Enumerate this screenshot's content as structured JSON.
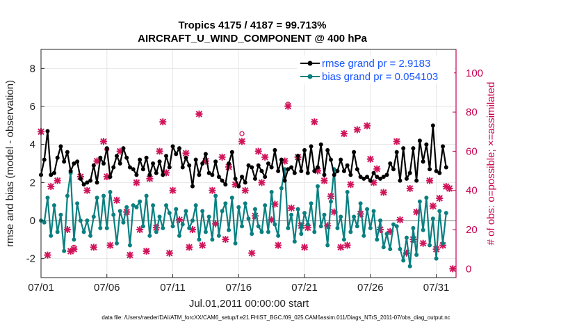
{
  "chart_data": {
    "type": "line",
    "title": "Tropics 4175 / 4187 = 99.713%",
    "subtitle": "AIRCRAFT_U_WIND_COMPONENT @ 400 hPa",
    "xlabel": "Jul.01,2011 00:00:00 start",
    "ylabel": "rmse and bias (model - observation)",
    "ylabel_right": "# of obs: o=possible; ×=assimilated",
    "footer": "data file: /Users/raeder/DAI/ATM_forcXX/CAM6_setup/f.e21.FHIST_BGC.f09_025.CAM6assim.011/Diags_NTrS_2011-07/obs_diag_output.nc",
    "xlim": [
      0,
      31.5
    ],
    "ylim": [
      -3,
      9
    ],
    "ylim_right": [
      -4.5,
      112
    ],
    "x_ticks": [
      {
        "v": 0,
        "label": "07/01"
      },
      {
        "v": 5,
        "label": "07/06"
      },
      {
        "v": 10,
        "label": "07/11"
      },
      {
        "v": 15,
        "label": "07/16"
      },
      {
        "v": 20,
        "label": "07/21"
      },
      {
        "v": 25,
        "label": "07/26"
      },
      {
        "v": 30,
        "label": "07/31"
      }
    ],
    "y_ticks": [
      {
        "v": -2,
        "label": "-2"
      },
      {
        "v": 0,
        "label": "0"
      },
      {
        "v": 2,
        "label": "2"
      },
      {
        "v": 4,
        "label": "4"
      },
      {
        "v": 6,
        "label": "6"
      },
      {
        "v": 8,
        "label": "8"
      }
    ],
    "y_ticks_right": [
      {
        "v": 0,
        "label": "0"
      },
      {
        "v": 20,
        "label": "20"
      },
      {
        "v": 40,
        "label": "40"
      },
      {
        "v": 60,
        "label": "60"
      },
      {
        "v": 80,
        "label": "80"
      },
      {
        "v": 100,
        "label": "100"
      }
    ],
    "grid": true,
    "legend_position": "top-right",
    "colors": {
      "rmse": "#000000",
      "bias": "#0a7f80",
      "obs": "#d1145a",
      "zero_line": "#bbbbbb",
      "axis_right": "#c8004e",
      "legend_text": "#1a56ff"
    },
    "series": [
      {
        "name": "rmse grand pr = 2.9183",
        "key": "rmse",
        "values": [
          2.4,
          3.2,
          4.7,
          2.4,
          2.5,
          3.3,
          3.9,
          3.1,
          3.6,
          2.6,
          3.0,
          3.1,
          2.2,
          1.9,
          2.0,
          2.1,
          2.9,
          2.0,
          3.3,
          3.0,
          3.8,
          2.3,
          2.8,
          3.4,
          3.0,
          3.8,
          3.3,
          2.8,
          2.7,
          2.4,
          3.2,
          2.7,
          3.3,
          2.4,
          3.0,
          2.5,
          3.1,
          2.4,
          3.4,
          2.8,
          3.9,
          3.5,
          3.8,
          2.8,
          3.3,
          2.9,
          1.8,
          3.2,
          2.4,
          3.0,
          3.5,
          2.5,
          2.4,
          3.1,
          2.3,
          2.1,
          1.9,
          3.0,
          3.6,
          2.2,
          1.8,
          2.3,
          2.0,
          2.9,
          2.8,
          2.2,
          2.9,
          2.6,
          2.3,
          3.0,
          2.8,
          3.7,
          2.6,
          3.2,
          2.1,
          2.7,
          2.8,
          2.5,
          3.4,
          2.6,
          3.7,
          2.5,
          3.9,
          2.6,
          2.8,
          4.0,
          2.4,
          3.7,
          3.2,
          2.4,
          2.6,
          3.2,
          2.6,
          2.9,
          2.4,
          3.6,
          2.7,
          2.3,
          2.2,
          2.3,
          2.1,
          2.5,
          2.3,
          2.2,
          2.3,
          2.4,
          3.0,
          2.7,
          3.6,
          2.1,
          3.8,
          2.2,
          2.5,
          3.8,
          2.1,
          4.2,
          3.1,
          4.0,
          2.7,
          5.0,
          2.6,
          2.5,
          3.9,
          2.8
        ],
        "x_step": 0.25
      },
      {
        "name": "bias grand pr = 0.054103",
        "key": "bias",
        "values": [
          0.0,
          -0.1,
          1.2,
          -0.8,
          0.8,
          -0.6,
          0.3,
          -1.6,
          1.3,
          2.5,
          -1.0,
          0.9,
          0.0,
          -0.6,
          0.0,
          -0.8,
          0.2,
          1.2,
          -0.4,
          1.3,
          -0.4,
          1.5,
          0.3,
          -1.2,
          0.5,
          -0.1,
          0.7,
          -1.3,
          0.8,
          0.7,
          1.0,
          -0.3,
          1.3,
          -0.8,
          0.8,
          -0.6,
          0.2,
          -0.4,
          0.8,
          0.4,
          -0.3,
          0.6,
          -0.8,
          -0.2,
          0.5,
          -0.4,
          0.0,
          0.8,
          -1.0,
          0.5,
          -0.6,
          0.2,
          -1.0,
          1.3,
          -0.8,
          0.5,
          0.9,
          -0.5,
          1.2,
          -1.2,
          0.7,
          -0.3,
          0.9,
          0.1,
          -0.7,
          0.6,
          -0.3,
          -0.6,
          0.8,
          -0.6,
          1.5,
          -0.2,
          -0.8,
          1.7,
          2.7,
          -0.4,
          0.3,
          -1.1,
          0.6,
          -0.7,
          0.4,
          -0.2,
          0.9,
          -0.6,
          1.8,
          -0.3,
          0.3,
          -1.3,
          1.0,
          2.7,
          -0.4,
          0.2,
          -1.0,
          1.5,
          -0.6,
          0.2,
          -0.3,
          0.9,
          -0.8,
          0.6,
          -0.4,
          0.5,
          -1.0,
          0.0,
          -1.4,
          -0.7,
          -1.5,
          -0.2,
          -0.3,
          -1.5,
          -2.1,
          -0.9,
          -2.4,
          -0.4,
          -1.8,
          1.0,
          -0.5,
          1.2,
          -1.3,
          0.1,
          -2.0,
          0.5,
          -1.2,
          0.4
        ],
        "x_step": 0.25
      },
      {
        "name": "# of obs assimilated",
        "key": "obs",
        "points": [
          [
            0.0,
            70
          ],
          [
            0.5,
            7
          ],
          [
            0.75,
            42
          ],
          [
            1.25,
            45
          ],
          [
            2.0,
            20
          ],
          [
            2.25,
            9
          ],
          [
            2.5,
            10
          ],
          [
            3.0,
            47
          ],
          [
            3.5,
            40
          ],
          [
            4.0,
            11
          ],
          [
            4.25,
            55
          ],
          [
            4.75,
            65
          ],
          [
            5.0,
            47
          ],
          [
            5.25,
            12
          ],
          [
            5.75,
            35
          ],
          [
            6.0,
            60
          ],
          [
            6.5,
            29
          ],
          [
            6.75,
            7
          ],
          [
            7.25,
            44
          ],
          [
            7.5,
            20
          ],
          [
            8.0,
            9
          ],
          [
            8.25,
            46
          ],
          [
            8.75,
            21
          ],
          [
            9.0,
            60
          ],
          [
            9.25,
            75
          ],
          [
            9.5,
            49
          ],
          [
            9.75,
            8
          ],
          [
            10.0,
            40
          ],
          [
            10.5,
            25
          ],
          [
            11.0,
            59
          ],
          [
            11.25,
            11
          ],
          [
            11.5,
            20
          ],
          [
            12.0,
            79
          ],
          [
            12.25,
            12
          ],
          [
            12.5,
            55
          ],
          [
            13.0,
            40
          ],
          [
            13.25,
            23
          ],
          [
            13.75,
            57
          ],
          [
            14.0,
            15
          ],
          [
            14.25,
            52
          ],
          [
            14.75,
            43
          ],
          [
            15.25,
            65
          ],
          [
            15.5,
            40
          ],
          [
            16.0,
            8
          ],
          [
            16.25,
            27
          ],
          [
            16.5,
            60
          ],
          [
            16.75,
            44
          ],
          [
            17.0,
            57
          ],
          [
            17.5,
            25
          ],
          [
            17.75,
            33
          ],
          [
            18.0,
            12
          ],
          [
            18.5,
            55
          ],
          [
            18.75,
            83
          ],
          [
            19.0,
            31
          ],
          [
            19.5,
            57
          ],
          [
            19.75,
            22
          ],
          [
            20.0,
            11
          ],
          [
            20.25,
            21
          ],
          [
            20.75,
            75
          ],
          [
            21.0,
            50
          ],
          [
            21.5,
            45
          ],
          [
            21.75,
            22
          ],
          [
            22.0,
            37
          ],
          [
            22.25,
            29
          ],
          [
            22.75,
            11
          ],
          [
            23.0,
            69
          ],
          [
            23.25,
            12
          ],
          [
            23.5,
            43
          ],
          [
            24.0,
            71
          ],
          [
            24.25,
            28
          ],
          [
            24.75,
            73
          ],
          [
            25.0,
            56
          ],
          [
            25.25,
            44
          ],
          [
            25.5,
            51
          ],
          [
            25.75,
            20
          ],
          [
            26.0,
            39
          ],
          [
            26.5,
            19
          ],
          [
            27.0,
            65
          ],
          [
            27.25,
            25
          ],
          [
            27.75,
            8
          ],
          [
            28.0,
            41
          ],
          [
            28.25,
            15
          ],
          [
            28.5,
            29
          ],
          [
            29.0,
            13
          ],
          [
            29.5,
            45
          ],
          [
            29.75,
            32
          ],
          [
            30.0,
            10
          ],
          [
            30.25,
            36
          ],
          [
            30.5,
            12
          ],
          [
            30.75,
            42
          ],
          [
            31.0,
            41
          ],
          [
            31.25,
            0
          ]
        ]
      },
      {
        "name": "# of obs possible",
        "key": "obs_possible_only",
        "points": [
          [
            2.5,
            11
          ],
          [
            5.0,
            61
          ],
          [
            15.25,
            69
          ],
          [
            18.75,
            84
          ]
        ]
      }
    ]
  }
}
